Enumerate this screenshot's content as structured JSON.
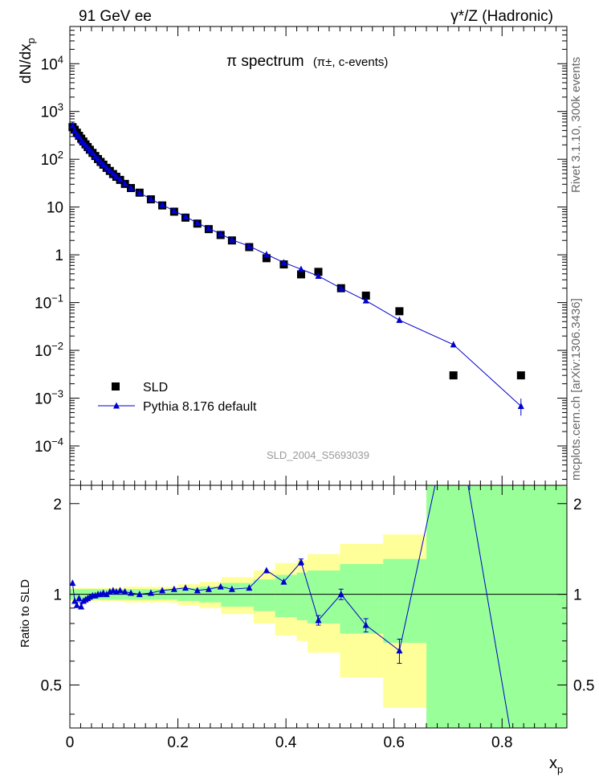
{
  "header": {
    "left": "91 GeV ee",
    "right": "γ*/Z (Hadronic)"
  },
  "side_labels": {
    "rivet": "Rivet 3.1.10,  300k events",
    "mcplots": "mcplots.cern.ch [arXiv:1306.3436]"
  },
  "colors": {
    "mc": "#0000cc",
    "data": "#000000",
    "band_inner": "#99ff99",
    "band_outer": "#ffff99"
  },
  "chart_data": {
    "type": "scatter",
    "title": "π spectrum",
    "subtitle": "(π±, c-events)",
    "analysis_id": "SLD_2004_S5693039",
    "xlabel": "x",
    "xlabel_sub": "p",
    "ylabel": "dN/dx",
    "ylabel_sub": "p",
    "ratio_ylabel": "Ratio to SLD",
    "xlim": [
      0,
      0.92
    ],
    "ylim_log": [
      1.5e-05,
      60000.0
    ],
    "ratio_ylim": [
      0.36,
      2.3
    ],
    "x_ticks": [
      "0",
      "0.2",
      "0.4",
      "0.6",
      "0.8"
    ],
    "x_tick_values": [
      0,
      0.2,
      0.4,
      0.6,
      0.8
    ],
    "y_ticks": [
      {
        "v": 10000,
        "base": "10",
        "exp": "4"
      },
      {
        "v": 1000,
        "base": "10",
        "exp": "3"
      },
      {
        "v": 100,
        "base": "10",
        "exp": "2"
      },
      {
        "v": 10,
        "base": "10",
        "exp": ""
      },
      {
        "v": 1,
        "base": "1",
        "exp": ""
      },
      {
        "v": 0.1,
        "base": "10",
        "exp": "−1"
      },
      {
        "v": 0.01,
        "base": "10",
        "exp": "−2"
      },
      {
        "v": 0.001,
        "base": "10",
        "exp": "−3"
      },
      {
        "v": 0.0001,
        "base": "10",
        "exp": "−4"
      }
    ],
    "ratio_ticks": [
      "0.5",
      "1",
      "2"
    ],
    "ratio_tick_values": [
      0.5,
      1,
      2
    ],
    "legend": [
      {
        "name": "SLD",
        "marker": "square"
      },
      {
        "name": "Pythia 8.176 default",
        "marker": "triangle-line"
      }
    ],
    "series": [
      {
        "name": "SLD",
        "x": [
          0.005,
          0.009,
          0.013,
          0.017,
          0.021,
          0.025,
          0.029,
          0.033,
          0.037,
          0.042,
          0.047,
          0.052,
          0.057,
          0.062,
          0.068,
          0.074,
          0.08,
          0.086,
          0.093,
          0.102,
          0.113,
          0.129,
          0.15,
          0.171,
          0.193,
          0.214,
          0.236,
          0.257,
          0.279,
          0.3,
          0.332,
          0.364,
          0.396,
          0.428,
          0.46,
          0.502,
          0.548,
          0.61,
          0.71,
          0.835
        ],
        "y": [
          470,
          415,
          360,
          310,
          270,
          235,
          205,
          180,
          158,
          136,
          117,
          101,
          88,
          77,
          66,
          57,
          49,
          43,
          37,
          30.5,
          25,
          20,
          14.5,
          10.8,
          8.0,
          6.0,
          4.5,
          3.45,
          2.6,
          2.0,
          1.45,
          0.85,
          0.63,
          0.39,
          0.44,
          0.2,
          0.14,
          0.066,
          0.003,
          0.003
        ]
      },
      {
        "name": "Pythia 8.176 default",
        "x": [
          0.005,
          0.009,
          0.013,
          0.017,
          0.021,
          0.025,
          0.029,
          0.033,
          0.037,
          0.042,
          0.047,
          0.052,
          0.057,
          0.062,
          0.068,
          0.074,
          0.08,
          0.086,
          0.093,
          0.102,
          0.113,
          0.129,
          0.15,
          0.171,
          0.193,
          0.214,
          0.236,
          0.257,
          0.279,
          0.3,
          0.332,
          0.364,
          0.396,
          0.428,
          0.46,
          0.502,
          0.548,
          0.61,
          0.71,
          0.835
        ],
        "y": [
          510,
          395,
          330,
          300,
          245,
          224,
          197,
          175,
          154,
          135,
          116,
          101,
          88,
          78,
          66,
          58,
          50,
          44,
          38,
          31,
          25,
          20,
          14.6,
          11.1,
          8.3,
          6.3,
          4.65,
          3.57,
          2.74,
          2.06,
          1.52,
          1.02,
          0.69,
          0.5,
          0.36,
          0.2,
          0.11,
          0.043,
          0.0132,
          0.00068
        ]
      }
    ],
    "ratio": {
      "x": [
        0.005,
        0.009,
        0.013,
        0.017,
        0.021,
        0.025,
        0.029,
        0.033,
        0.037,
        0.042,
        0.047,
        0.052,
        0.057,
        0.062,
        0.068,
        0.074,
        0.08,
        0.086,
        0.093,
        0.102,
        0.113,
        0.129,
        0.15,
        0.171,
        0.193,
        0.214,
        0.236,
        0.257,
        0.279,
        0.3,
        0.332,
        0.364,
        0.396,
        0.428,
        0.46,
        0.502,
        0.548,
        0.61,
        0.71,
        0.835
      ],
      "y": [
        1.09,
        0.95,
        0.92,
        0.97,
        0.91,
        0.95,
        0.96,
        0.97,
        0.98,
        0.99,
        0.99,
        1.0,
        1.0,
        1.01,
        1.0,
        1.02,
        1.03,
        1.02,
        1.03,
        1.02,
        1.01,
        1.0,
        1.01,
        1.03,
        1.04,
        1.05,
        1.03,
        1.04,
        1.06,
        1.04,
        1.05,
        1.2,
        1.1,
        1.28,
        0.82,
        1.0,
        0.79,
        0.65,
        4.4,
        0.22
      ],
      "errors": [
        0,
        0,
        0,
        0,
        0,
        0,
        0,
        0,
        0,
        0,
        0,
        0,
        0,
        0,
        0,
        0,
        0,
        0,
        0,
        0,
        0,
        0,
        0,
        0,
        0,
        0,
        0,
        0,
        0,
        0,
        0,
        0,
        0,
        0.03,
        0.03,
        0.04,
        0.04,
        0.06,
        0,
        0
      ],
      "band_inner": [
        {
          "x0": 0.0,
          "x1": 0.1,
          "h": 0.04
        },
        {
          "x0": 0.1,
          "x1": 0.2,
          "h": 0.04
        },
        {
          "x0": 0.2,
          "x1": 0.24,
          "h": 0.05
        },
        {
          "x0": 0.24,
          "x1": 0.28,
          "h": 0.06
        },
        {
          "x0": 0.28,
          "x1": 0.34,
          "h": 0.09
        },
        {
          "x0": 0.34,
          "x1": 0.38,
          "h": 0.12
        },
        {
          "x0": 0.38,
          "x1": 0.42,
          "h": 0.16
        },
        {
          "x0": 0.42,
          "x1": 0.44,
          "h": 0.18
        },
        {
          "x0": 0.44,
          "x1": 0.5,
          "h": 0.2
        },
        {
          "x0": 0.5,
          "x1": 0.58,
          "h": 0.26
        },
        {
          "x0": 0.58,
          "x1": 0.66,
          "h": 0.31
        },
        {
          "x0": 0.66,
          "x1": 0.92,
          "h": 5.0
        }
      ],
      "band_outer": [
        {
          "x0": 0.0,
          "x1": 0.1,
          "h": 0.05
        },
        {
          "x0": 0.1,
          "x1": 0.2,
          "h": 0.06
        },
        {
          "x0": 0.2,
          "x1": 0.24,
          "h": 0.08
        },
        {
          "x0": 0.24,
          "x1": 0.28,
          "h": 0.1
        },
        {
          "x0": 0.28,
          "x1": 0.34,
          "h": 0.14
        },
        {
          "x0": 0.34,
          "x1": 0.38,
          "h": 0.2
        },
        {
          "x0": 0.38,
          "x1": 0.42,
          "h": 0.27
        },
        {
          "x0": 0.42,
          "x1": 0.44,
          "h": 0.3
        },
        {
          "x0": 0.44,
          "x1": 0.5,
          "h": 0.36
        },
        {
          "x0": 0.5,
          "x1": 0.58,
          "h": 0.47
        },
        {
          "x0": 0.58,
          "x1": 0.66,
          "h": 0.58
        },
        {
          "x0": 0.66,
          "x1": 0.92,
          "h": 5.0
        }
      ]
    }
  }
}
